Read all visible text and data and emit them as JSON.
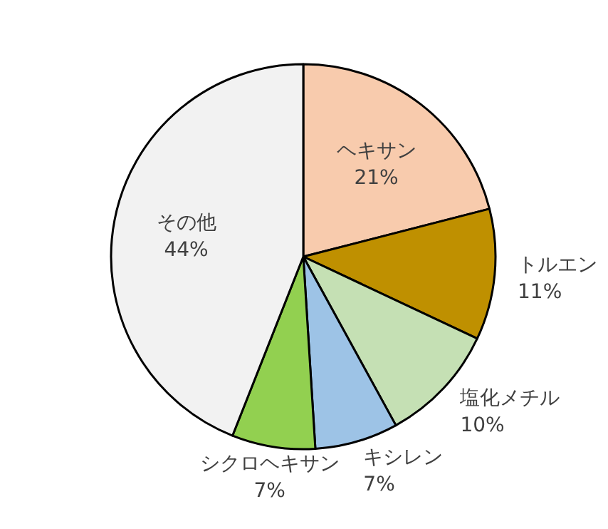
{
  "chart_data": {
    "type": "pie",
    "categories": [
      "ヘキサン",
      "トルエン",
      "塩化メチル",
      "キシレン",
      "シクロヘキサン",
      "その他"
    ],
    "values": [
      21,
      11,
      10,
      7,
      7,
      44
    ],
    "value_labels": [
      "21%",
      "11%",
      "10%",
      "7%",
      "7%",
      "44%"
    ],
    "colors": [
      "#f8cbad",
      "#bf9000",
      "#c5e0b4",
      "#9dc3e6",
      "#92d050",
      "#f2f2f2"
    ],
    "legend": false
  }
}
